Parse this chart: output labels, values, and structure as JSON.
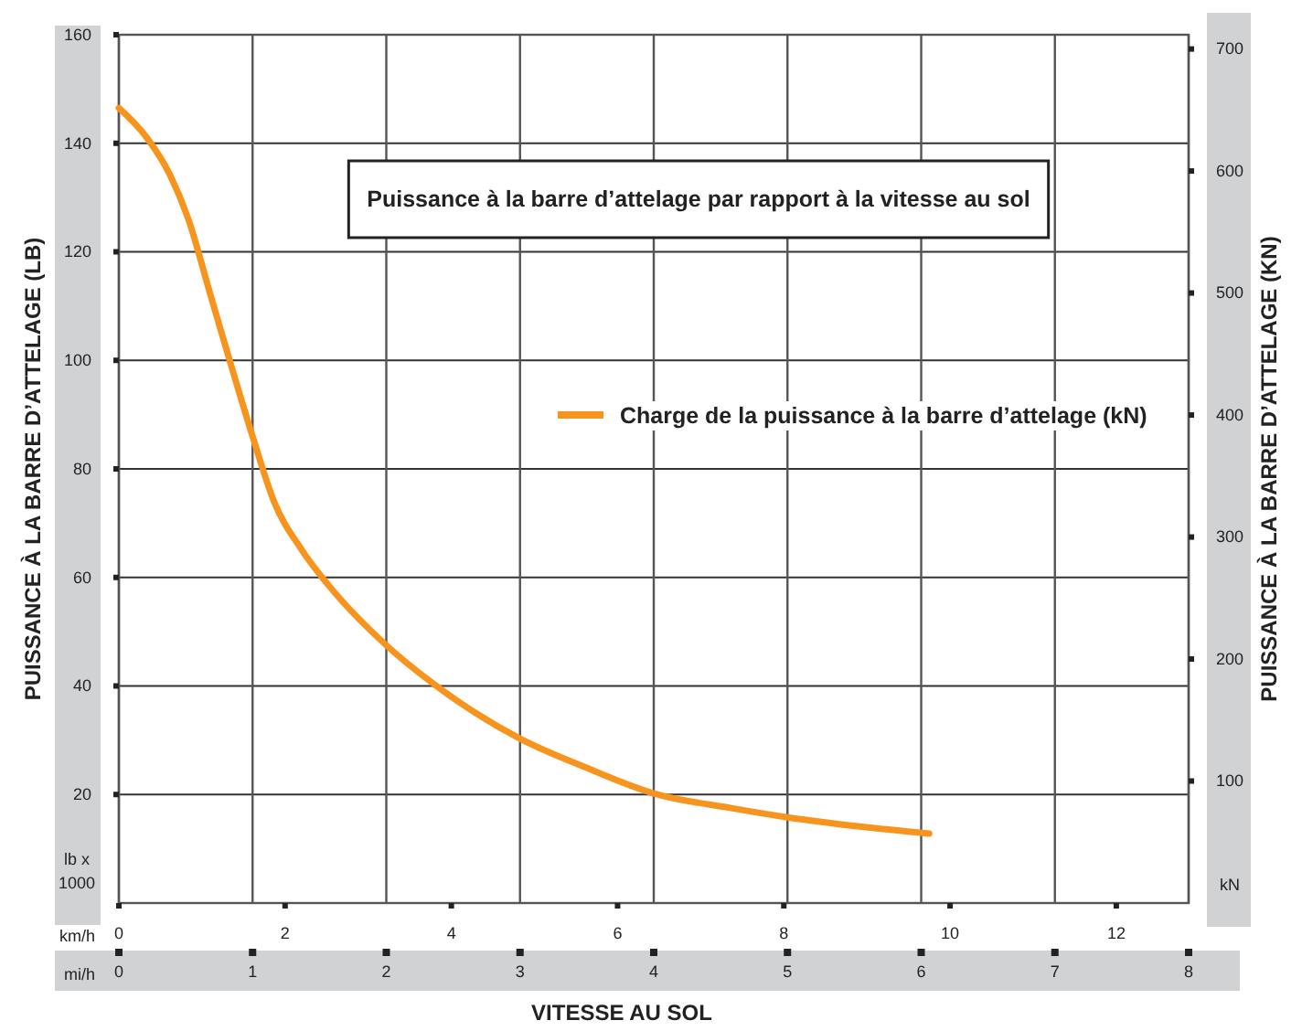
{
  "chart_data": {
    "type": "line",
    "title": "Puissance à la barre d’attelage par rapport à la vitesse au sol",
    "xlabel": "VITESSE AU SOL",
    "ylabel": "PUISSANCE À LA BARRE D’ATTELAGE (LB)",
    "y2label": "PUISSANCE À LA BARRE D’ATTELAGE (KN)",
    "annotations": [
      "lb x 1000",
      "kN",
      "km/h",
      "mi/h"
    ],
    "x": [
      0,
      0.21,
      0.38,
      0.52,
      0.68,
      0.82,
      1.0,
      1.16,
      1.37,
      1.57,
      2.0,
      2.32,
      2.67,
      3.0,
      3.49,
      4.0,
      4.58,
      5.0,
      5.54,
      6.06
    ],
    "series": [
      {
        "name": "Charge de la puissance à la barre d’attelage (kN)",
        "color": "#f7941d",
        "values": [
          146.5,
          141,
          134.3,
          126,
          112.5,
          100.7,
          86,
          74,
          65,
          58.5,
          47.5,
          41,
          35,
          30.3,
          25,
          20.2,
          17.5,
          15.8,
          14.1,
          12.8
        ]
      }
    ],
    "xlim": [
      0,
      8
    ],
    "xticks": [
      0,
      1,
      2,
      3,
      4,
      5,
      6,
      7,
      8
    ],
    "x2lim": [
      0,
      12.87
    ],
    "x2ticks": [
      0,
      2,
      4,
      6,
      8,
      10,
      12
    ],
    "ylim": [
      0,
      160
    ],
    "yticks": [
      20,
      40,
      60,
      80,
      100,
      120,
      140,
      160
    ],
    "y2lim": [
      0,
      711.7
    ],
    "y2ticks": [
      100,
      200,
      300,
      400,
      500,
      600,
      700
    ],
    "grid": true,
    "legend": "right",
    "marker": "none",
    "line_style": "solid"
  }
}
